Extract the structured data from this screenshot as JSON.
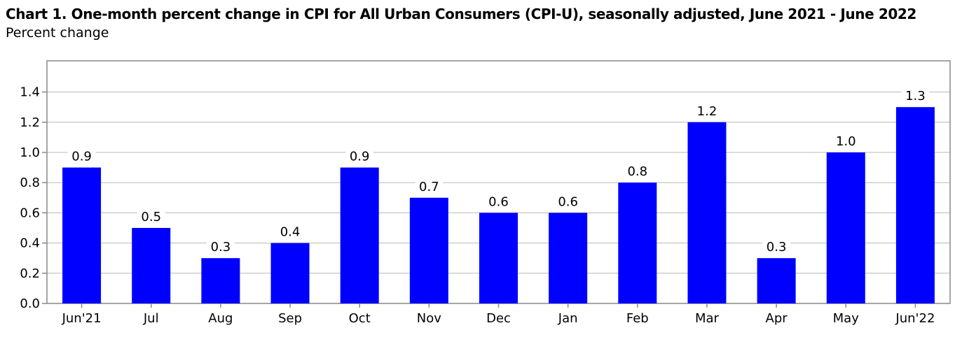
{
  "chart_data": {
    "type": "bar",
    "title": "Chart 1. One-month percent change in CPI for All Urban Consumers (CPI-U), seasonally adjusted, June 2021 - June 2022",
    "ylabel": "Percent change",
    "xlabel": "",
    "categories": [
      "Jun'21",
      "Jul",
      "Aug",
      "Sep",
      "Oct",
      "Nov",
      "Dec",
      "Jan",
      "Feb",
      "Mar",
      "Apr",
      "May",
      "Jun'22"
    ],
    "values": [
      0.9,
      0.5,
      0.3,
      0.4,
      0.9,
      0.7,
      0.6,
      0.6,
      0.8,
      1.2,
      0.3,
      1.0,
      1.3
    ],
    "value_labels": [
      "0.9",
      "0.5",
      "0.3",
      "0.4",
      "0.9",
      "0.7",
      "0.6",
      "0.6",
      "0.8",
      "1.2",
      "0.3",
      "1.0",
      "1.3"
    ],
    "y_ticks": [
      "0.0",
      "0.2",
      "0.4",
      "0.6",
      "0.8",
      "1.0",
      "1.2",
      "1.4"
    ],
    "ylim": [
      0,
      1.6
    ],
    "grid": true,
    "bar_color": "#0000ff"
  }
}
